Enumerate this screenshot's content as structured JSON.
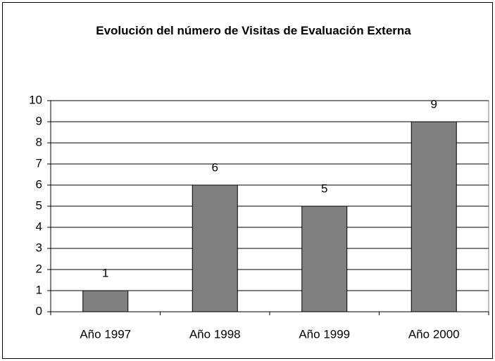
{
  "chart_data": {
    "type": "bar",
    "title": "Evolución del número de Visitas de Evaluación Externa",
    "categories": [
      "Año 1997",
      "Año 1998",
      "Año 1999",
      "Año 2000"
    ],
    "values": [
      1,
      6,
      5,
      9
    ],
    "color": "#808080",
    "ylim": [
      0,
      10
    ],
    "yticks": [
      0,
      1,
      2,
      3,
      4,
      5,
      6,
      7,
      8,
      9,
      10
    ],
    "grid": true
  }
}
